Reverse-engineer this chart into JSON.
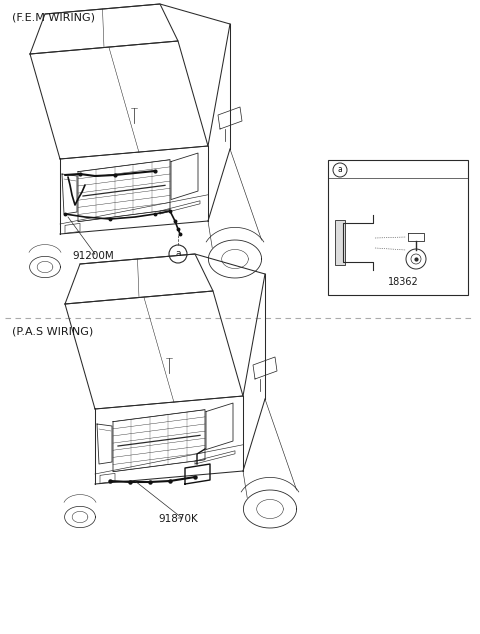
{
  "title_top": "(F.E.M WIRING)",
  "title_bottom": "(P.A.S WIRING)",
  "label_fem_part": "91200M",
  "label_fem_circle": "a",
  "label_inset_circle": "a",
  "label_inset_part": "18362",
  "label_pas_part": "91870K",
  "bg_color": "#ffffff",
  "line_color": "#2a2a2a",
  "text_color": "#1a1a1a",
  "divider_color": "#aaaaaa",
  "title_fontsize": 8.0,
  "label_fontsize": 7.5,
  "fig_width": 4.8,
  "fig_height": 6.34
}
